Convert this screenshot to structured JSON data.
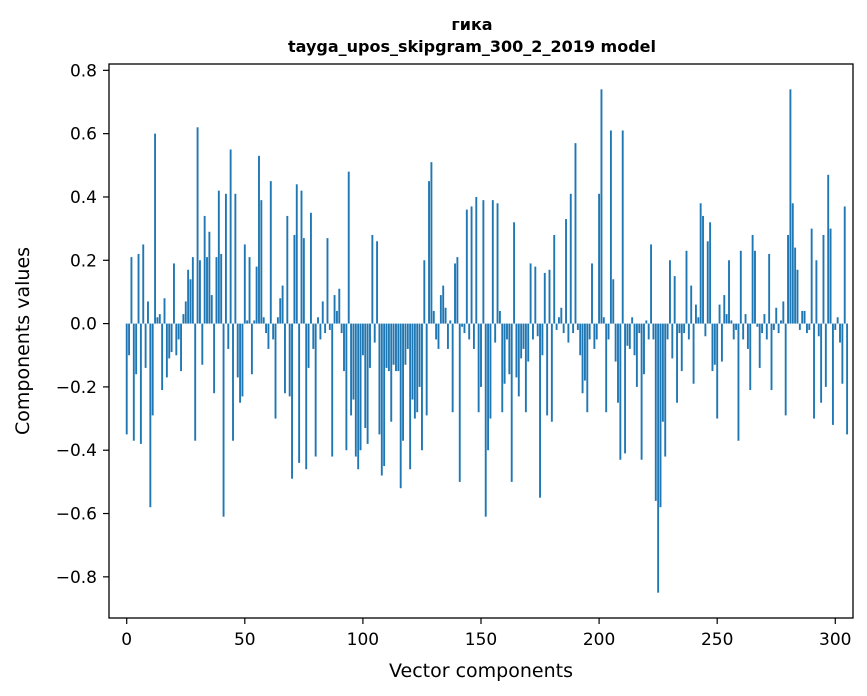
{
  "chart_data": {
    "type": "bar",
    "title": "гика",
    "subtitle": "tayga_upos_skipgram_300_2_2019 model",
    "xlabel": "Vector components",
    "ylabel": "Components values",
    "xlim": [
      -7.5,
      307.5
    ],
    "ylim": [
      -0.93,
      0.82
    ],
    "x_ticks": [
      0,
      50,
      100,
      150,
      200,
      250,
      300
    ],
    "x_tick_labels": [
      "0",
      "50",
      "100",
      "150",
      "200",
      "250",
      "300"
    ],
    "y_ticks": [
      -0.8,
      -0.6,
      -0.4,
      -0.2,
      0.0,
      0.2,
      0.4,
      0.6,
      0.8
    ],
    "y_tick_labels": [
      "−0.8",
      "−0.6",
      "−0.4",
      "−0.2",
      "0.0",
      "0.2",
      "0.4",
      "0.6",
      "0.8"
    ],
    "bar_color": "#1f77b4",
    "grid": false,
    "values": [
      -0.35,
      -0.1,
      0.21,
      -0.37,
      -0.16,
      0.22,
      -0.38,
      0.25,
      -0.14,
      0.07,
      -0.58,
      -0.29,
      0.6,
      0.02,
      0.03,
      -0.21,
      0.08,
      -0.17,
      -0.11,
      -0.09,
      0.19,
      -0.1,
      -0.05,
      -0.15,
      0.03,
      0.07,
      0.17,
      0.14,
      0.21,
      -0.37,
      0.62,
      0.2,
      -0.13,
      0.34,
      0.21,
      0.29,
      0.09,
      -0.22,
      0.21,
      0.42,
      0.22,
      -0.61,
      0.41,
      -0.08,
      0.55,
      -0.37,
      0.41,
      -0.17,
      -0.25,
      -0.23,
      0.25,
      0.01,
      0.21,
      -0.16,
      0.01,
      0.18,
      0.53,
      0.39,
      0.02,
      -0.03,
      -0.08,
      0.45,
      -0.05,
      -0.3,
      0.02,
      0.08,
      0.12,
      -0.22,
      0.34,
      -0.23,
      -0.49,
      0.28,
      0.44,
      -0.44,
      0.42,
      0.27,
      -0.46,
      -0.14,
      0.35,
      -0.08,
      -0.42,
      0.02,
      -0.05,
      0.07,
      -0.03,
      0.27,
      -0.02,
      -0.42,
      0.09,
      0.04,
      0.11,
      -0.03,
      -0.15,
      -0.4,
      0.48,
      -0.29,
      -0.24,
      -0.42,
      -0.46,
      -0.4,
      -0.1,
      -0.33,
      -0.38,
      -0.14,
      0.28,
      -0.06,
      0.26,
      -0.35,
      -0.48,
      -0.45,
      -0.14,
      -0.15,
      -0.31,
      -0.13,
      -0.15,
      -0.15,
      -0.52,
      -0.37,
      -0.13,
      -0.08,
      -0.46,
      -0.24,
      -0.3,
      -0.28,
      -0.2,
      -0.4,
      0.2,
      -0.29,
      0.45,
      0.51,
      0.04,
      -0.05,
      -0.08,
      0.09,
      0.12,
      0.05,
      -0.08,
      0.01,
      -0.28,
      0.19,
      0.21,
      -0.5,
      -0.01,
      -0.03,
      0.36,
      -0.05,
      0.37,
      -0.08,
      0.4,
      -0.28,
      -0.2,
      0.39,
      -0.61,
      -0.4,
      -0.3,
      0.39,
      -0.06,
      0.38,
      0.04,
      -0.28,
      -0.19,
      -0.05,
      -0.16,
      -0.5,
      0.32,
      -0.17,
      -0.23,
      -0.11,
      -0.08,
      -0.28,
      -0.12,
      0.19,
      -0.05,
      0.18,
      -0.04,
      -0.55,
      -0.1,
      0.16,
      -0.29,
      0.17,
      -0.31,
      0.28,
      -0.02,
      0.02,
      0.05,
      -0.03,
      0.33,
      -0.06,
      0.41,
      -0.03,
      0.57,
      -0.02,
      -0.1,
      -0.22,
      -0.18,
      -0.28,
      -0.05,
      0.19,
      -0.08,
      -0.05,
      0.41,
      0.74,
      0.02,
      -0.28,
      -0.05,
      0.61,
      0.14,
      -0.12,
      -0.25,
      -0.43,
      0.61,
      -0.41,
      -0.07,
      -0.08,
      0.02,
      -0.1,
      -0.2,
      -0.03,
      -0.43,
      -0.16,
      0.01,
      -0.05,
      0.25,
      -0.05,
      -0.56,
      -0.85,
      -0.58,
      -0.31,
      -0.42,
      -0.05,
      0.2,
      -0.11,
      0.15,
      -0.25,
      -0.03,
      -0.15,
      -0.03,
      0.23,
      -0.05,
      0.12,
      -0.19,
      0.06,
      0.02,
      0.38,
      0.34,
      -0.04,
      0.26,
      0.32,
      -0.15,
      -0.13,
      -0.3,
      0.06,
      -0.12,
      0.09,
      0.03,
      0.2,
      0.01,
      -0.05,
      -0.02,
      -0.37,
      0.23,
      -0.05,
      0.03,
      -0.08,
      -0.21,
      0.28,
      0.23,
      -0.01,
      -0.14,
      -0.03,
      0.03,
      -0.05,
      0.22,
      -0.21,
      -0.02,
      0.05,
      -0.03,
      0.01,
      0.07,
      -0.29,
      0.28,
      0.74,
      0.38,
      0.24,
      0.17,
      -0.02,
      0.04,
      0.04,
      -0.03,
      -0.02,
      0.3,
      -0.3,
      0.2,
      -0.04,
      -0.25,
      0.28,
      -0.2,
      0.47,
      0.3,
      -0.32,
      -0.02,
      0.02,
      -0.06,
      -0.19,
      0.37,
      -0.35
    ]
  }
}
